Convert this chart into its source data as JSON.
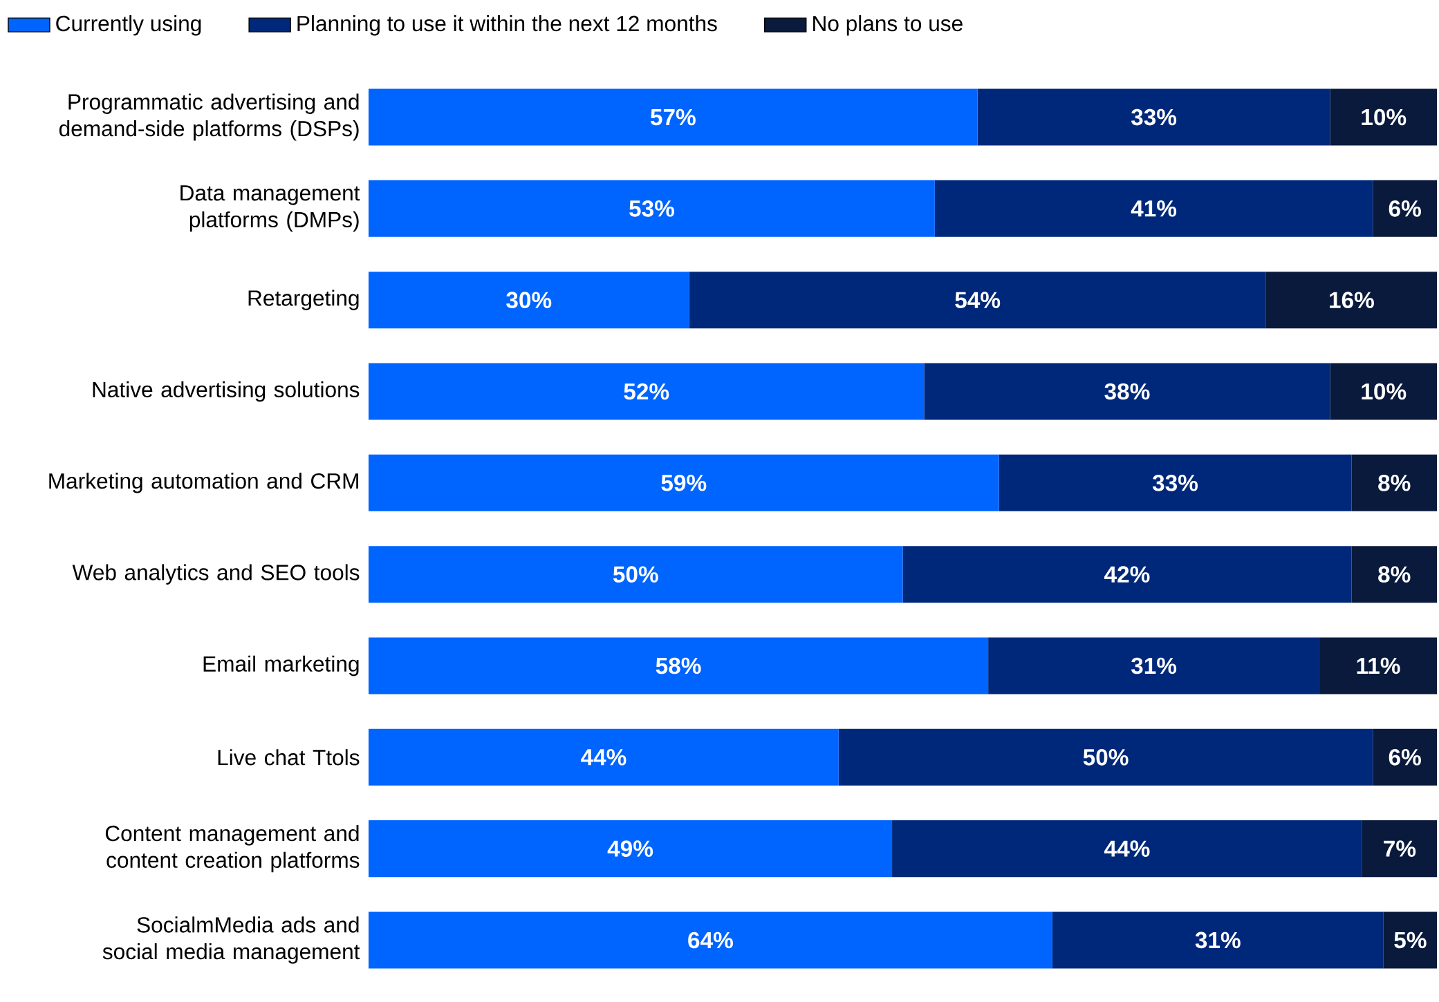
{
  "chart_data": {
    "type": "bar",
    "orientation": "horizontal",
    "stacked": true,
    "legend": "top left",
    "categories": [
      "Programmatic advertising and demand-side platforms (DSPs)",
      "Data management platforms (DMPs)",
      "Retargeting",
      "Native advertising solutions",
      "Marketing automation and CRM",
      "Web analytics and SEO tools",
      "Email marketing",
      "Live chat Ttols",
      "Content management and content creation platforms",
      "SocialmMedia ads and social media management"
    ],
    "series": [
      {
        "name": "Currently using",
        "color": "#0064ff",
        "values": [
          57,
          53,
          30,
          52,
          59,
          50,
          58,
          44,
          49,
          64
        ],
        "value_labels": [
          "57%",
          "53%",
          "30%",
          "52%",
          "59%",
          "50%",
          "58%",
          "44%",
          "49%",
          "64%"
        ]
      },
      {
        "name": "Planning to use it within the next 12 months",
        "color": "#00287a",
        "values": [
          33,
          41,
          54,
          38,
          33,
          42,
          31,
          50,
          44,
          31
        ],
        "value_labels": [
          "33%",
          "41%",
          "54%",
          "38%",
          "33%",
          "42%",
          "31%",
          "50%",
          "44%",
          "31%"
        ]
      },
      {
        "name": "No plans to use",
        "color": "#0a1a3c",
        "values": [
          10,
          6,
          16,
          10,
          8,
          8,
          11,
          6,
          7,
          5
        ],
        "value_labels": [
          "10%",
          "6%",
          "16%",
          "10%",
          "8%",
          "8%",
          "11%",
          "6%",
          "7%",
          "5%"
        ]
      }
    ]
  }
}
